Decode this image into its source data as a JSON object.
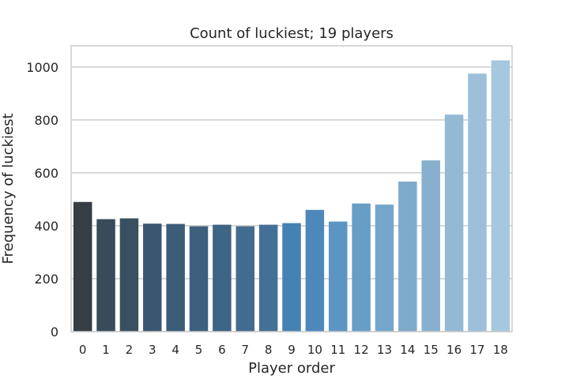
{
  "chart_data": {
    "type": "bar",
    "title": "Count of luckiest; 19 players",
    "xlabel": "Player order",
    "ylabel": "Frequency of luckiest",
    "categories": [
      "0",
      "1",
      "2",
      "3",
      "4",
      "5",
      "6",
      "7",
      "8",
      "9",
      "10",
      "11",
      "12",
      "13",
      "14",
      "15",
      "16",
      "17",
      "18"
    ],
    "values": [
      490,
      425,
      428,
      408,
      407,
      398,
      404,
      398,
      404,
      410,
      460,
      416,
      484,
      480,
      567,
      647,
      820,
      975,
      1025
    ],
    "ylim": [
      0,
      1080
    ],
    "yticks": [
      0,
      200,
      400,
      600,
      800,
      1000
    ],
    "grid": true,
    "legend": "none",
    "colors": [
      "#363d43",
      "#374b5a",
      "#38505f",
      "#3b5670",
      "#3d5c78",
      "#3e5f7e",
      "#3f6585",
      "#416c8f",
      "#446f96",
      "#4681b3",
      "#4e88bb",
      "#5b95c3",
      "#679ec6",
      "#74a6cb",
      "#7eaacc",
      "#87b0cf",
      "#93b9d5",
      "#9ebfd9",
      "#a5c8df"
    ]
  }
}
